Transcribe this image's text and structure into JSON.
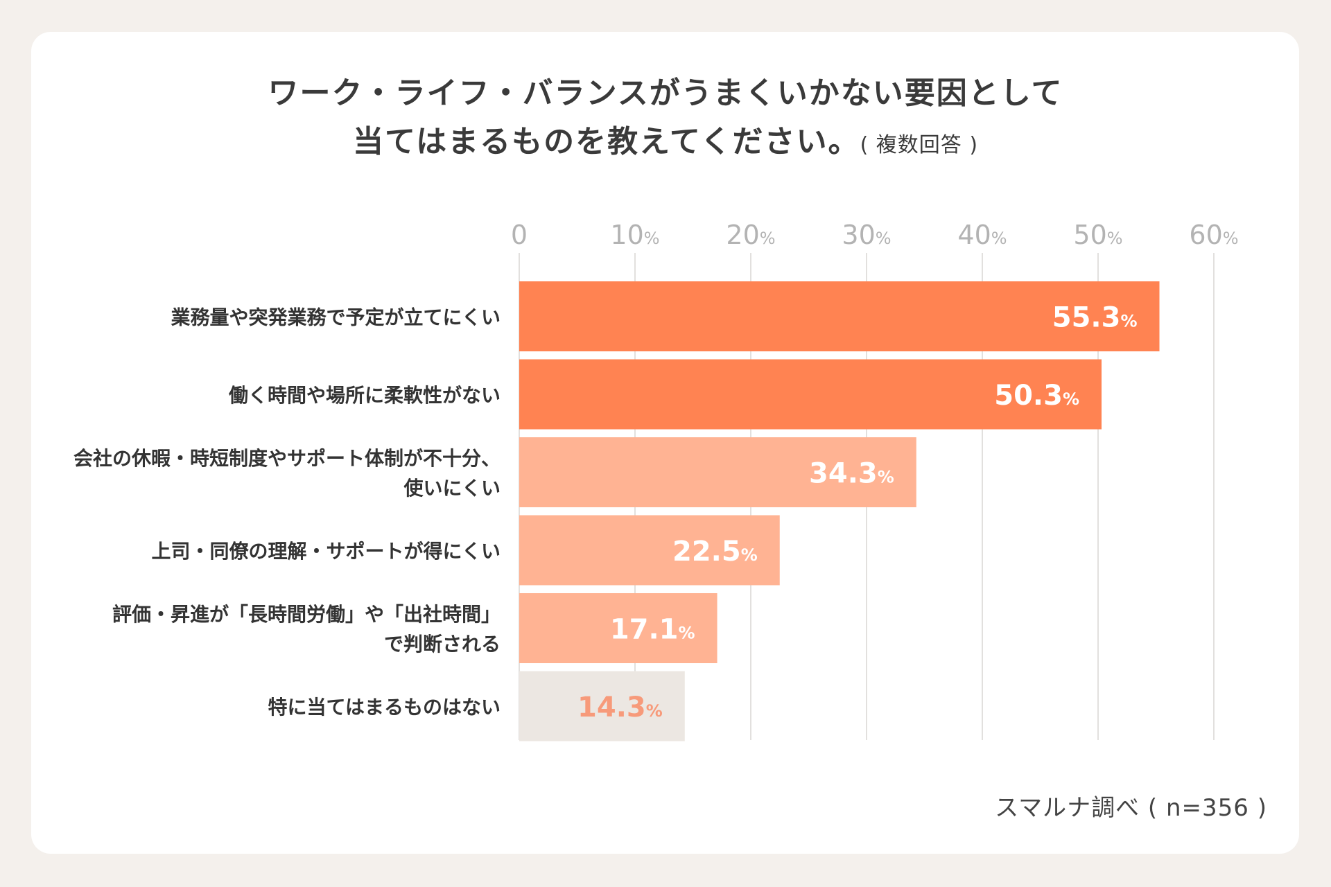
{
  "title": {
    "line1": "ワーク・ライフ・バランスがうまくいかない要因として",
    "line2": "当てはまるものを教えてください。",
    "note": "( 複数回答 )"
  },
  "source": "スマルナ調べ ( n=356 )",
  "colors": {
    "bar_primary": "#ff8352",
    "bar_secondary": "#ffb393",
    "bar_none": "#ece7e2",
    "label_none": "#f79a7a",
    "grid": "#d9d6d3",
    "tick": "#b3b3b3"
  },
  "chart_data": {
    "type": "bar",
    "orientation": "horizontal",
    "categories": [
      [
        "業務量や突発業務で予定が立てにくい"
      ],
      [
        "働く時間や場所に柔軟性がない"
      ],
      [
        "会社の休暇・時短制度やサポート体制が不十分、",
        "使いにくい"
      ],
      [
        "上司・同僚の理解・サポートが得にくい"
      ],
      [
        "評価・昇進が「長時間労働」や「出社時間」",
        "で判断される"
      ],
      [
        "特に当てはまるものはない"
      ]
    ],
    "values": [
      55.3,
      50.3,
      34.3,
      22.5,
      17.1,
      14.3
    ],
    "value_labels": [
      "55.3",
      "50.3",
      "34.3",
      "22.5",
      "17.1",
      "14.3"
    ],
    "value_unit": "%",
    "xlim": [
      0,
      60
    ],
    "ticks": [
      0,
      10,
      20,
      30,
      40,
      50,
      60
    ],
    "tick_labels": [
      "0",
      "10",
      "20",
      "30",
      "40",
      "50",
      "60"
    ],
    "tick_unit": "%",
    "grid": true
  }
}
